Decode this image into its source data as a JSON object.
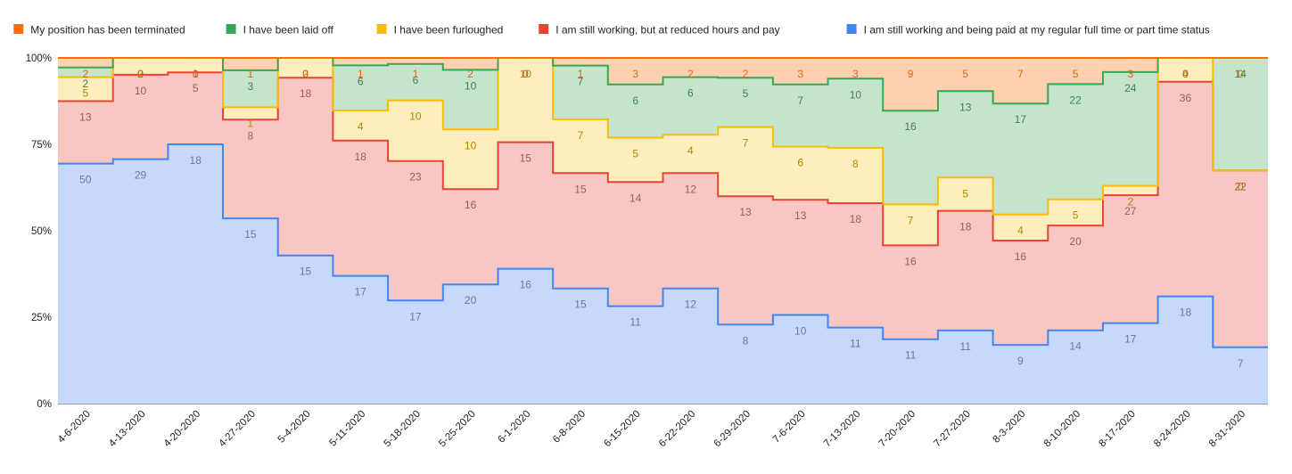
{
  "chart_data": {
    "type": "area",
    "stacking": "percent",
    "step": true,
    "grid": true,
    "legend_position": "top",
    "title": "",
    "xlabel": "",
    "ylabel": "",
    "ylim": [
      0,
      100
    ],
    "y_ticks": [
      "0%",
      "25%",
      "50%",
      "75%",
      "100%"
    ],
    "categories": [
      "4-6-2020",
      "4-13-2020",
      "4-20-2020",
      "4-27-2020",
      "5-4-2020",
      "5-11-2020",
      "5-18-2020",
      "5-25-2020",
      "6-1-2020",
      "6-8-2020",
      "6-15-2020",
      "6-22-2020",
      "6-29-2020",
      "7-6-2020",
      "7-13-2020",
      "7-20-2020",
      "7-27-2020",
      "8-3-2020",
      "8-10-2020",
      "8-17-2020",
      "8-24-2020",
      "8-31-2020"
    ],
    "series": [
      {
        "name": "I am still working and being paid at my regular full time or part time status",
        "color": "#4285f4",
        "fill": "#c6d9fb",
        "values": [
          50,
          29,
          18,
          15,
          15,
          17,
          17,
          20,
          16,
          15,
          11,
          12,
          8,
          10,
          11,
          11,
          11,
          9,
          14,
          17,
          18,
          7
        ]
      },
      {
        "name": "I am still working, but at reduced hours and pay",
        "color": "#ea4335",
        "fill": "#f8c7c3",
        "values": [
          13,
          10,
          5,
          8,
          18,
          18,
          23,
          16,
          15,
          15,
          14,
          12,
          13,
          13,
          18,
          16,
          18,
          16,
          20,
          27,
          36,
          22
        ]
      },
      {
        "name": "I have been furloughed",
        "color": "#fbbc04",
        "fill": "#feeebe",
        "values": [
          5,
          2,
          1,
          1,
          2,
          4,
          10,
          10,
          10,
          7,
          5,
          4,
          7,
          6,
          8,
          7,
          5,
          4,
          5,
          2,
          4,
          0
        ]
      },
      {
        "name": "I have been laid off",
        "color": "#34a853",
        "fill": "#c4e5cc",
        "values": [
          2,
          0,
          0,
          3,
          0,
          6,
          6,
          10,
          0,
          7,
          6,
          6,
          5,
          7,
          10,
          16,
          13,
          17,
          22,
          24,
          0,
          14
        ]
      },
      {
        "name": "My position has been terminated",
        "color": "#ff6d01",
        "fill": "#ffd1b0",
        "values": [
          2,
          0,
          0,
          1,
          0,
          1,
          1,
          2,
          0,
          1,
          3,
          2,
          2,
          3,
          3,
          9,
          5,
          7,
          5,
          3,
          0,
          0
        ]
      }
    ],
    "legend_order": [
      "My position has been terminated",
      "I have been laid off",
      "I have been furloughed",
      "I am still working, but at reduced hours and pay",
      "I am still working and being paid at my regular full time or part time status"
    ]
  }
}
